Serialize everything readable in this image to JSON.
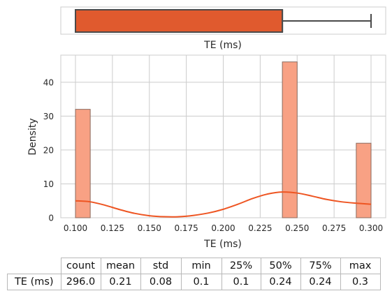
{
  "chart_data": [
    {
      "type": "box",
      "xlabel": "TE (ms)",
      "stats": {
        "min": 0.1,
        "q1": 0.1,
        "median": 0.24,
        "q3": 0.24,
        "max": 0.3
      },
      "color": "#e05a2e"
    },
    {
      "type": "histogram",
      "xlabel": "TE (ms)",
      "ylabel": "Density",
      "xlim": [
        0.09,
        0.31
      ],
      "ylim": [
        0,
        48
      ],
      "xticks": [
        "0.100",
        "0.125",
        "0.150",
        "0.175",
        "0.200",
        "0.225",
        "0.250",
        "0.275",
        "0.300"
      ],
      "yticks": [
        "0",
        "10",
        "20",
        "30",
        "40"
      ],
      "grid": true,
      "bars": [
        {
          "x0": 0.1,
          "x1": 0.11,
          "density": 32
        },
        {
          "x0": 0.24,
          "x1": 0.25,
          "density": 46
        },
        {
          "x0": 0.29,
          "x1": 0.3,
          "density": 22
        }
      ],
      "kde": {
        "x": [
          0.1,
          0.11,
          0.12,
          0.13,
          0.14,
          0.15,
          0.16,
          0.17,
          0.18,
          0.19,
          0.2,
          0.21,
          0.22,
          0.23,
          0.24,
          0.25,
          0.26,
          0.27,
          0.28,
          0.29,
          0.3
        ],
        "y": [
          5.0,
          4.7,
          3.7,
          2.4,
          1.3,
          0.6,
          0.3,
          0.3,
          0.7,
          1.4,
          2.5,
          4.0,
          5.7,
          7.0,
          7.6,
          7.3,
          6.4,
          5.4,
          4.7,
          4.3,
          4.0
        ]
      },
      "bar_color": "#f8a184",
      "line_color": "#ee5522"
    },
    {
      "type": "table",
      "columns": [
        "count",
        "mean",
        "std",
        "min",
        "25%",
        "50%",
        "75%",
        "max"
      ],
      "rows": [
        {
          "label": "TE (ms)",
          "values": [
            "296.0",
            "0.21",
            "0.08",
            "0.1",
            "0.1",
            "0.24",
            "0.24",
            "0.3"
          ]
        }
      ]
    }
  ]
}
